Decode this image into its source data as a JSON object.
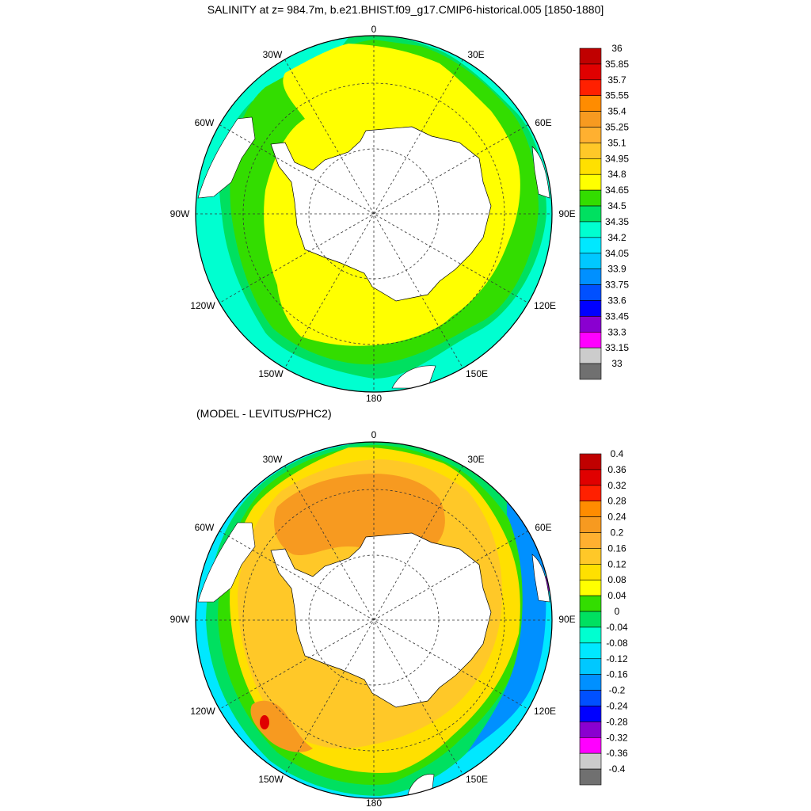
{
  "title": "SALINITY at z= 984.7m, b.e21.BHIST.f09_g17.CMIP6-historical.005 [1850-1880]",
  "subtitle": "(MODEL - LEVITUS/PHC2)",
  "longitude_labels": {
    "top": "0",
    "w30": "30W",
    "e30": "30E",
    "w60": "60W",
    "e60": "60E",
    "w90": "90W",
    "e90": "90E",
    "w120": "120W",
    "e120": "120E",
    "w150": "150W",
    "e150": "150E",
    "bottom": "180"
  },
  "colorbar_top": {
    "labels": [
      "36",
      "35.85",
      "35.7",
      "35.55",
      "35.4",
      "35.25",
      "35.1",
      "34.95",
      "34.8",
      "34.65",
      "34.5",
      "34.35",
      "34.2",
      "34.05",
      "33.9",
      "33.75",
      "33.6",
      "33.45",
      "33.3",
      "33.15",
      "33"
    ],
    "colors": [
      "#c00000",
      "#e00000",
      "#ff2000",
      "#ff8c00",
      "#f79a20",
      "#ffb030",
      "#ffc828",
      "#ffe000",
      "#ffff00",
      "#33dd00",
      "#00e060",
      "#00ffd0",
      "#00e8ff",
      "#00c8ff",
      "#0090ff",
      "#0050ff",
      "#0000ff",
      "#8a00d0",
      "#ff00ff",
      "#cccccc",
      "#707070"
    ]
  },
  "colorbar_bottom": {
    "labels": [
      "0.4",
      "0.36",
      "0.32",
      "0.28",
      "0.24",
      "0.2",
      "0.16",
      "0.12",
      "0.08",
      "0.04",
      "0",
      "-0.04",
      "-0.08",
      "-0.12",
      "-0.16",
      "-0.2",
      "-0.24",
      "-0.28",
      "-0.32",
      "-0.36",
      "-0.4"
    ],
    "colors": [
      "#c00000",
      "#e00000",
      "#ff2000",
      "#ff8c00",
      "#f79a20",
      "#ffb030",
      "#ffc828",
      "#ffe000",
      "#ffff00",
      "#33dd00",
      "#00e060",
      "#00ffd0",
      "#00e8ff",
      "#00c8ff",
      "#0090ff",
      "#0050ff",
      "#0000ff",
      "#8a00d0",
      "#ff00ff",
      "#cccccc",
      "#707070"
    ]
  },
  "colors": {
    "land": "#ffffff",
    "outline": "#000000",
    "grid": "#333333"
  }
}
